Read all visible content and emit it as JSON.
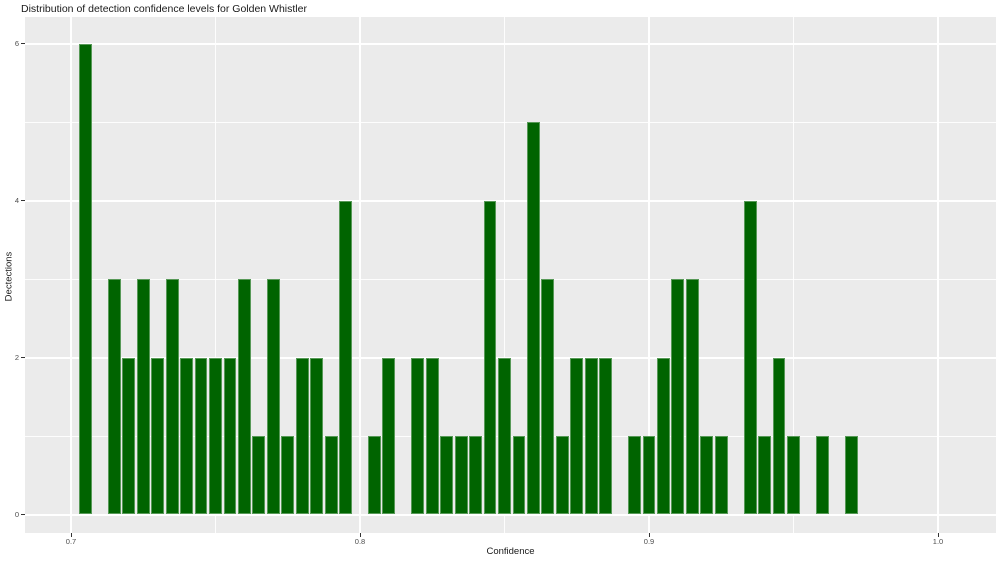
{
  "chart_data": {
    "type": "bar",
    "subtype": "histogram",
    "title": "Distribution of detection confidence levels for Golden Whistler",
    "xlabel": "Confidence",
    "ylabel": "Dectections",
    "bin_width": 0.005,
    "bin_centers": [
      0.705,
      0.71,
      0.715,
      0.72,
      0.725,
      0.73,
      0.735,
      0.74,
      0.745,
      0.75,
      0.755,
      0.76,
      0.765,
      0.77,
      0.775,
      0.78,
      0.785,
      0.79,
      0.795,
      0.8,
      0.805,
      0.81,
      0.815,
      0.82,
      0.825,
      0.83,
      0.835,
      0.84,
      0.845,
      0.85,
      0.855,
      0.86,
      0.865,
      0.87,
      0.875,
      0.88,
      0.885,
      0.89,
      0.895,
      0.9,
      0.905,
      0.91,
      0.915,
      0.92,
      0.925,
      0.93,
      0.935,
      0.94,
      0.945,
      0.95,
      0.955,
      0.96,
      0.965,
      0.97
    ],
    "counts": [
      6,
      0,
      3,
      2,
      3,
      2,
      3,
      2,
      2,
      2,
      2,
      3,
      1,
      3,
      1,
      2,
      2,
      1,
      4,
      0,
      1,
      2,
      0,
      2,
      2,
      1,
      1,
      1,
      4,
      2,
      1,
      5,
      3,
      1,
      2,
      2,
      2,
      0,
      1,
      1,
      2,
      3,
      3,
      1,
      1,
      0,
      4,
      1,
      2,
      1,
      0,
      1,
      0,
      1
    ],
    "x_ticks": {
      "values": [
        0.7,
        0.8,
        0.9,
        1.0
      ],
      "labels": [
        "0.7",
        "0.8",
        "0.9",
        "1.0"
      ]
    },
    "y_ticks": {
      "values": [
        0,
        2,
        4,
        6
      ],
      "labels": [
        "0",
        "2",
        "4",
        "6"
      ]
    },
    "xlim": [
      0.684,
      1.021
    ],
    "ylim": [
      -0.25,
      6.34
    ],
    "grid": true,
    "legend_position": "none",
    "colors": {
      "bar_fill": "#006400",
      "bar_edge": "#579957",
      "panel_background": "#EBEBEB",
      "gridline": "#FFFFFF",
      "tick_label": "#4D4D4D",
      "text": "#1A1A1A",
      "figure_background": "#FFFFFF"
    }
  }
}
